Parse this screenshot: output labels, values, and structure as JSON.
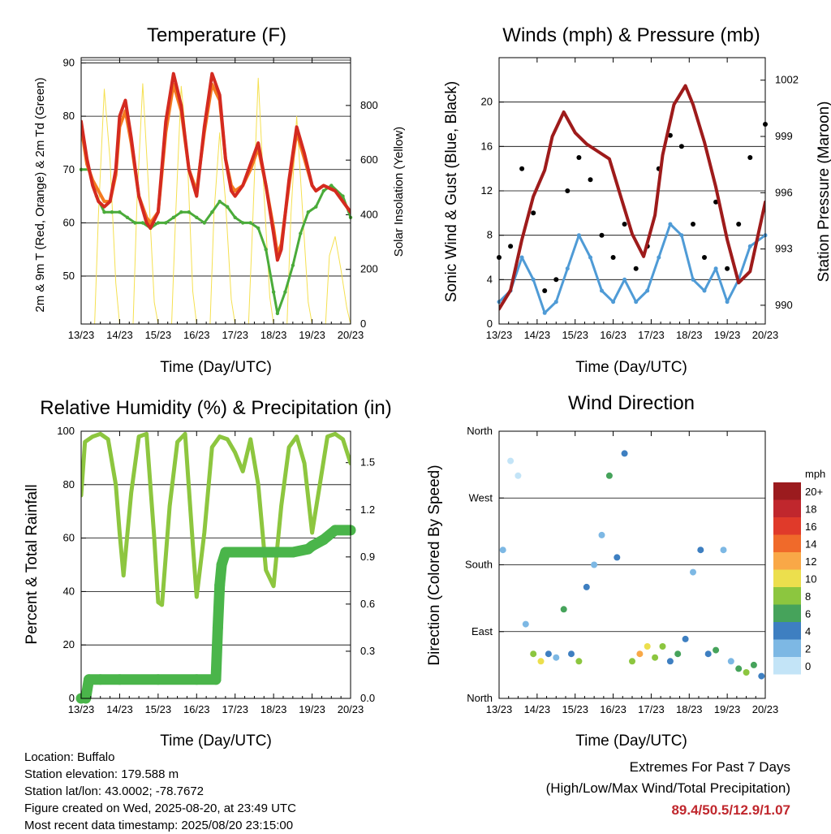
{
  "colors": {
    "temp_red": "#d42a20",
    "temp_orange": "#f47a20",
    "dewpoint_green": "#4aab3a",
    "solar_yellow": "#f5e050",
    "gust_black": "#000000",
    "wind_blue": "#4f9bd6",
    "pressure_maroon": "#9e1b1b",
    "rh_lightgreen": "#8dc63f",
    "precip_green": "#4ab54a"
  },
  "x_ticks": [
    "13/23",
    "14/23",
    "15/23",
    "16/23",
    "17/23",
    "18/23",
    "19/23",
    "20/23"
  ],
  "x_label": "Time (Day/UTC)",
  "panels": {
    "temperature": {
      "title": "Temperature (F)",
      "left_label": "2m & 9m T (Red, Orange) & 2m Td (Green)",
      "right_label": "Solar Insolation (Yellow)"
    },
    "winds": {
      "title": "Winds (mph) & Pressure (mb)",
      "left_label": "Sonic Wind & Gust (Blue, Black)",
      "right_label": "Station Pressure (Maroon)"
    },
    "humidity": {
      "title": "Relative Humidity (%) & Precipitation (in)",
      "left_label": "Percent & Total Rainfall"
    },
    "direction": {
      "title": "Wind Direction",
      "left_label": "Direction (Colored By Speed)"
    }
  },
  "legend": {
    "unit": "mph",
    "items": [
      {
        "label": "20+",
        "color": "#9b1b1e"
      },
      {
        "label": "18",
        "color": "#c0272d"
      },
      {
        "label": "16",
        "color": "#e03a2a"
      },
      {
        "label": "14",
        "color": "#f06a2a"
      },
      {
        "label": "12",
        "color": "#f9a847"
      },
      {
        "label": "10",
        "color": "#ecdf4d"
      },
      {
        "label": "8",
        "color": "#8cc63f"
      },
      {
        "label": "6",
        "color": "#46a35b"
      },
      {
        "label": "4",
        "color": "#3e7fc1"
      },
      {
        "label": "2",
        "color": "#7db8e4"
      },
      {
        "label": "0",
        "color": "#c3e4f7"
      }
    ]
  },
  "info": {
    "location": "Location: Buffalo",
    "elevation": "Station elevation: 179.588 m",
    "latlon": "Station lat/lon: 43.0002; -78.7672",
    "created": "Figure created on Wed, 2025-08-20, at 23:49 UTC",
    "recent": "Most recent data timestamp: 2025/08/20 23:15:00"
  },
  "extremes": {
    "title": "Extremes For Past 7 Days",
    "subtitle": "(High/Low/Max Wind/Total Precipitation)",
    "values": "89.4/50.5/12.9/1.07"
  },
  "chart_data": [
    {
      "type": "line",
      "title": "Temperature (F)",
      "xlabel": "Time (Day/UTC)",
      "ylabel": "2m & 9m T (Red, Orange) & 2m Td (Green)",
      "y2label": "Solar Insolation (Yellow)",
      "x_ticks": [
        "13/23",
        "14/23",
        "15/23",
        "16/23",
        "17/23",
        "18/23",
        "19/23",
        "20/23"
      ],
      "ylim": [
        41,
        91
      ],
      "y_ticks": [
        50,
        60,
        70,
        80,
        90
      ],
      "y2lim": [
        0,
        975
      ],
      "y2_ticks": [
        0,
        200,
        400,
        600,
        800
      ],
      "grid": true,
      "series": [
        {
          "name": "2m T",
          "color": "#d42a20",
          "x": [
            0,
            0.15,
            0.3,
            0.45,
            0.6,
            0.75,
            0.9,
            1.0,
            1.15,
            1.3,
            1.5,
            1.7,
            1.8,
            2.0,
            2.2,
            2.4,
            2.6,
            2.8,
            3.0,
            3.2,
            3.4,
            3.6,
            3.75,
            3.9,
            4.0,
            4.2,
            4.4,
            4.6,
            4.8,
            5.0,
            5.1,
            5.2,
            5.4,
            5.6,
            5.8,
            6.0,
            6.1,
            6.3,
            6.6,
            7.0
          ],
          "y": [
            79,
            72,
            67,
            64,
            63,
            64,
            70,
            80,
            83,
            76,
            65,
            60,
            59,
            62,
            79,
            88,
            82,
            70,
            65,
            78,
            88,
            84,
            72,
            66,
            65,
            67,
            71,
            75,
            67,
            58,
            53,
            55,
            68,
            78,
            73,
            67,
            66,
            67,
            66,
            62
          ]
        },
        {
          "name": "9m T",
          "color": "#f47a20",
          "x": [
            0,
            0.15,
            0.3,
            0.45,
            0.6,
            0.75,
            0.9,
            1.0,
            1.15,
            1.3,
            1.5,
            1.7,
            1.8,
            2.0,
            2.2,
            2.4,
            2.6,
            2.8,
            3.0,
            3.2,
            3.4,
            3.6,
            3.75,
            3.9,
            4.0,
            4.2,
            4.4,
            4.6,
            4.8,
            5.0,
            5.1,
            5.2,
            5.4,
            5.6,
            5.8,
            6.0,
            6.1,
            6.3,
            6.6,
            7.0
          ],
          "y": [
            78,
            71,
            68,
            66,
            64,
            64,
            69,
            78,
            81,
            75,
            65,
            61,
            60,
            62,
            77,
            86,
            81,
            70,
            66,
            77,
            86,
            83,
            72,
            67,
            66,
            67,
            70,
            74,
            67,
            59,
            54,
            56,
            67,
            77,
            72,
            67,
            66,
            67,
            66,
            62
          ]
        },
        {
          "name": "2m Td",
          "color": "#4aab3a",
          "x": [
            0,
            0.2,
            0.4,
            0.6,
            0.8,
            1.0,
            1.2,
            1.4,
            1.6,
            1.8,
            2.0,
            2.2,
            2.4,
            2.6,
            2.8,
            3.0,
            3.2,
            3.4,
            3.6,
            3.8,
            4.0,
            4.2,
            4.4,
            4.6,
            4.8,
            5.0,
            5.1,
            5.3,
            5.5,
            5.7,
            5.9,
            6.1,
            6.3,
            6.5,
            6.8,
            7.0
          ],
          "y": [
            70,
            70,
            65,
            62,
            62,
            62,
            61,
            60,
            60,
            59,
            60,
            60,
            61,
            62,
            62,
            61,
            60,
            62,
            64,
            63,
            61,
            60,
            60,
            59,
            55,
            47,
            43,
            47,
            52,
            58,
            62,
            63,
            66,
            67,
            65,
            61
          ]
        },
        {
          "name": "Solar Insolation",
          "color": "#f5e050",
          "axis": "right",
          "x": [
            0,
            0.35,
            0.45,
            0.6,
            0.75,
            0.9,
            1.0,
            1.35,
            1.45,
            1.6,
            1.75,
            1.9,
            2.0,
            2.35,
            2.45,
            2.6,
            2.75,
            2.9,
            3.0,
            3.35,
            3.45,
            3.6,
            3.75,
            3.9,
            4.0,
            4.35,
            4.45,
            4.6,
            4.75,
            4.9,
            5.0,
            5.35,
            5.45,
            5.6,
            5.75,
            5.9,
            6.0,
            6.35,
            6.45,
            6.6,
            6.75,
            6.9,
            7.0
          ],
          "y": [
            0,
            0,
            400,
            860,
            600,
            150,
            0,
            0,
            450,
            880,
            500,
            80,
            0,
            0,
            380,
            870,
            650,
            120,
            0,
            0,
            400,
            700,
            450,
            90,
            0,
            0,
            350,
            900,
            480,
            100,
            0,
            0,
            400,
            760,
            420,
            80,
            0,
            0,
            250,
            320,
            200,
            60,
            0
          ]
        }
      ]
    },
    {
      "type": "scatter",
      "title": "Winds (mph) & Pressure (mb)",
      "xlabel": "Time (Day/UTC)",
      "ylabel": "Sonic Wind & Gust (Blue, Black)",
      "y2label": "Station Pressure (Maroon)",
      "x_ticks": [
        "13/23",
        "14/23",
        "15/23",
        "16/23",
        "17/23",
        "18/23",
        "19/23",
        "20/23"
      ],
      "ylim": [
        0,
        24
      ],
      "y_ticks": [
        0,
        4,
        8,
        12,
        16,
        20
      ],
      "y2lim": [
        989,
        1003.2
      ],
      "y2_ticks": [
        990,
        993,
        996,
        999,
        1002
      ],
      "grid": true,
      "series": [
        {
          "name": "Sonic Wind",
          "color": "#4f9bd6",
          "x": [
            0,
            0.3,
            0.6,
            0.9,
            1.2,
            1.5,
            1.8,
            2.1,
            2.4,
            2.7,
            3.0,
            3.3,
            3.6,
            3.9,
            4.2,
            4.5,
            4.8,
            5.1,
            5.4,
            5.7,
            6.0,
            6.3,
            6.6,
            7.0
          ],
          "y": [
            2,
            3,
            6,
            4,
            1,
            2,
            5,
            8,
            6,
            3,
            2,
            4,
            2,
            3,
            6,
            9,
            8,
            4,
            3,
            5,
            2,
            4,
            7,
            8
          ]
        },
        {
          "name": "Gust",
          "color": "#000000",
          "x": [
            0,
            0.3,
            0.6,
            0.9,
            1.2,
            1.5,
            1.8,
            2.1,
            2.4,
            2.7,
            3.0,
            3.3,
            3.6,
            3.9,
            4.2,
            4.5,
            4.8,
            5.1,
            5.4,
            5.7,
            6.0,
            6.3,
            6.6,
            7.0
          ],
          "y": [
            6,
            7,
            14,
            10,
            3,
            4,
            12,
            15,
            13,
            8,
            6,
            9,
            5,
            7,
            14,
            17,
            16,
            9,
            6,
            11,
            5,
            9,
            15,
            18
          ]
        },
        {
          "name": "Station Pressure",
          "color": "#9e1b1b",
          "axis": "right",
          "x": [
            0,
            0.3,
            0.6,
            0.9,
            1.2,
            1.4,
            1.7,
            2.0,
            2.3,
            2.6,
            2.9,
            3.2,
            3.5,
            3.8,
            4.1,
            4.3,
            4.6,
            4.9,
            5.1,
            5.4,
            5.7,
            6.0,
            6.3,
            6.6,
            7.0
          ],
          "y": [
            989.8,
            990.8,
            993.5,
            995.8,
            997.2,
            999,
            1000.3,
            999.2,
            998.6,
            998.2,
            997.8,
            995.8,
            993.8,
            992.6,
            994.8,
            998,
            1000.7,
            1001.7,
            1000.7,
            998.7,
            996.3,
            993.5,
            991.2,
            991.8,
            995.5
          ]
        }
      ]
    },
    {
      "type": "line",
      "title": "Relative Humidity (%) & Precipitation (in)",
      "xlabel": "Time (Day/UTC)",
      "ylabel": "Percent & Total Rainfall",
      "x_ticks": [
        "13/23",
        "14/23",
        "15/23",
        "16/23",
        "17/23",
        "18/23",
        "19/23",
        "20/23"
      ],
      "ylim": [
        0,
        100
      ],
      "y_ticks": [
        0,
        20,
        40,
        60,
        80,
        100
      ],
      "y2lim": [
        0,
        1.7
      ],
      "y2_ticks": [
        0.0,
        0.3,
        0.6,
        0.9,
        1.2,
        1.5
      ],
      "grid": true,
      "series": [
        {
          "name": "Relative Humidity",
          "color": "#8dc63f",
          "x": [
            0,
            0.1,
            0.3,
            0.5,
            0.7,
            0.9,
            1.0,
            1.1,
            1.3,
            1.5,
            1.7,
            1.9,
            2.0,
            2.1,
            2.3,
            2.5,
            2.7,
            2.9,
            3.0,
            3.2,
            3.4,
            3.6,
            3.8,
            4.0,
            4.2,
            4.4,
            4.6,
            4.8,
            5.0,
            5.2,
            5.4,
            5.6,
            5.8,
            6.0,
            6.2,
            6.4,
            6.6,
            6.8,
            7.0
          ],
          "y": [
            76,
            96,
            98,
            99,
            97,
            80,
            62,
            46,
            77,
            98,
            99,
            60,
            36,
            35,
            72,
            96,
            99,
            58,
            38,
            62,
            94,
            98,
            97,
            92,
            85,
            97,
            80,
            48,
            42,
            72,
            94,
            98,
            88,
            62,
            80,
            98,
            99,
            97,
            88
          ]
        },
        {
          "name": "Total Precipitation",
          "color": "#4ab54a",
          "axis": "right",
          "x": [
            0,
            0.12,
            0.2,
            0.5,
            1.0,
            2.0,
            3.0,
            3.5,
            3.55,
            3.6,
            3.65,
            3.75,
            4.0,
            4.5,
            5.0,
            5.5,
            5.9,
            6.0,
            6.3,
            6.6,
            7.0
          ],
          "y": [
            0,
            0,
            0.12,
            0.12,
            0.12,
            0.12,
            0.12,
            0.12,
            0.45,
            0.72,
            0.85,
            0.93,
            0.93,
            0.93,
            0.93,
            0.93,
            0.95,
            0.97,
            1.01,
            1.07,
            1.07
          ]
        }
      ]
    },
    {
      "type": "scatter",
      "title": "Wind Direction",
      "xlabel": "Time (Day/UTC)",
      "ylabel": "Direction (Colored By Speed)",
      "x_ticks": [
        "13/23",
        "14/23",
        "15/23",
        "16/23",
        "17/23",
        "18/23",
        "19/23",
        "20/23"
      ],
      "ylim": [
        0,
        360
      ],
      "y_tick_labels": [
        "North",
        "East",
        "South",
        "West",
        "North"
      ],
      "y_tick_values": [
        0,
        90,
        180,
        270,
        360
      ],
      "grid": true,
      "series": [
        {
          "name": "Direction",
          "x": [
            0.1,
            0.3,
            0.5,
            0.7,
            0.9,
            1.1,
            1.3,
            1.5,
            1.7,
            1.9,
            2.1,
            2.3,
            2.5,
            2.7,
            2.9,
            3.1,
            3.3,
            3.5,
            3.7,
            3.9,
            4.1,
            4.3,
            4.5,
            4.7,
            4.9,
            5.1,
            5.3,
            5.5,
            5.7,
            5.9,
            6.1,
            6.3,
            6.5,
            6.7,
            6.9
          ],
          "y": [
            200,
            320,
            300,
            100,
            60,
            50,
            60,
            55,
            120,
            60,
            50,
            150,
            180,
            220,
            300,
            190,
            330,
            50,
            60,
            70,
            55,
            70,
            50,
            60,
            80,
            170,
            200,
            60,
            65,
            200,
            50,
            40,
            35,
            45,
            30
          ],
          "speed": [
            2,
            1,
            1,
            3,
            8,
            10,
            4,
            3,
            6,
            5,
            9,
            4,
            3,
            2,
            6,
            4,
            5,
            9,
            12,
            10,
            8,
            9,
            5,
            6,
            4,
            3,
            4,
            5,
            6,
            3,
            2,
            7,
            8,
            6,
            5
          ]
        }
      ]
    }
  ]
}
